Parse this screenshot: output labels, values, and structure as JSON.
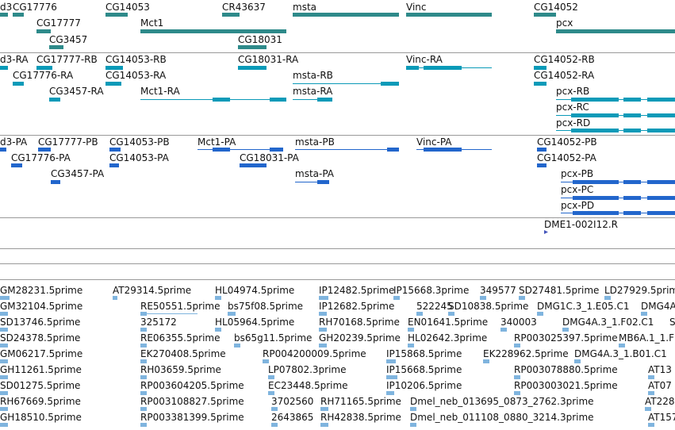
{
  "colors": {
    "gene": "#2e8a8a",
    "transcript": "#0a9ab8",
    "protein": "#2266cc",
    "est": "#7fb4de",
    "clone": "#4455bb",
    "separator": "#9a9a9a"
  },
  "gene_track": {
    "labels": [
      "d3",
      "CG17776",
      "CG14053",
      "CR43637",
      "msta",
      "Vinc",
      "CG14052",
      "CG17777",
      "Mct1",
      "pcx",
      "CG3457",
      "CG18031"
    ]
  },
  "transcript_track": {
    "labels": [
      "d3-RA",
      "CG17777-RB",
      "CG14053-RB",
      "CG18031-RA",
      "Vinc-RA",
      "CG14052-RB",
      "CG17776-RA",
      "CG14053-RA",
      "msta-RB",
      "CG14052-RA",
      "CG3457-RA",
      "Mct1-RA",
      "msta-RA",
      "pcx-RB",
      "pcx-RC",
      "pcx-RD"
    ]
  },
  "protein_track": {
    "labels": [
      "d3-PA",
      "CG17777-PB",
      "CG14053-PB",
      "Mct1-PA",
      "msta-PB",
      "Vinc-PA",
      "CG14052-PB",
      "CG17776-PA",
      "CG14053-PA",
      "CG18031-PA",
      "CG14052-PA",
      "CG3457-PA",
      "msta-PA",
      "pcx-PB",
      "pcx-PC",
      "pcx-PD"
    ]
  },
  "clone_track": {
    "labels": [
      "DME1-002I12.R"
    ]
  },
  "est_track": {
    "labels": [
      "GM28231.5prime",
      "AT29314.5prime",
      "HL04974.5prime",
      "IP12482.5prime",
      "IP15668.3prime",
      "349577",
      "SD27481.5prime",
      "LD27929.5prime",
      "GM32104.5prime",
      "RE50551.5prime",
      "bs75f08.5prime",
      "IP12682.5prime",
      "522245",
      "SD10838.5prime",
      "DMG1C.3_1.E05.C1",
      "DMG4A",
      "SD13746.5prime",
      "325172",
      "HL05964.5prime",
      "RH70168.5prime",
      "EN01641.5prime",
      "340003",
      "DMG4A.3_1.F02.C1",
      "S",
      "SD24378.5prime",
      "RE06355.5prime",
      "bs65g11.5prime",
      "GH20239.5prime",
      "HL02642.3prime",
      "RP003025397.5prime",
      "MB6A.1_1.F",
      "GM06217.5prime",
      "EK270408.5prime",
      "RP004200009.5prime",
      "IP15868.5prime",
      "EK228962.5prime",
      "DMG4A.3_1.B01.C1",
      "GH11261.5prime",
      "RH03659.5prime",
      "LP07802.3prime",
      "IP15668.5prime",
      "RP003078880.5prime",
      "AT13",
      "SD01275.5prime",
      "RP003604205.5prime",
      "EC23448.5prime",
      "IP10206.5prime",
      "RP003003021.5prime",
      "AT07",
      "RH67669.5prime",
      "RP003108827.5prime",
      "3702560",
      "RH71165.5prime",
      "Dmel_neb_013695_0873_2762.3prime",
      "AT228",
      "GH18510.5prime",
      "RP003381399.5prime",
      "2643865",
      "RH42838.5prime",
      "Dmel_neb_011108_0880_3214.3prime",
      "AT157"
    ]
  }
}
